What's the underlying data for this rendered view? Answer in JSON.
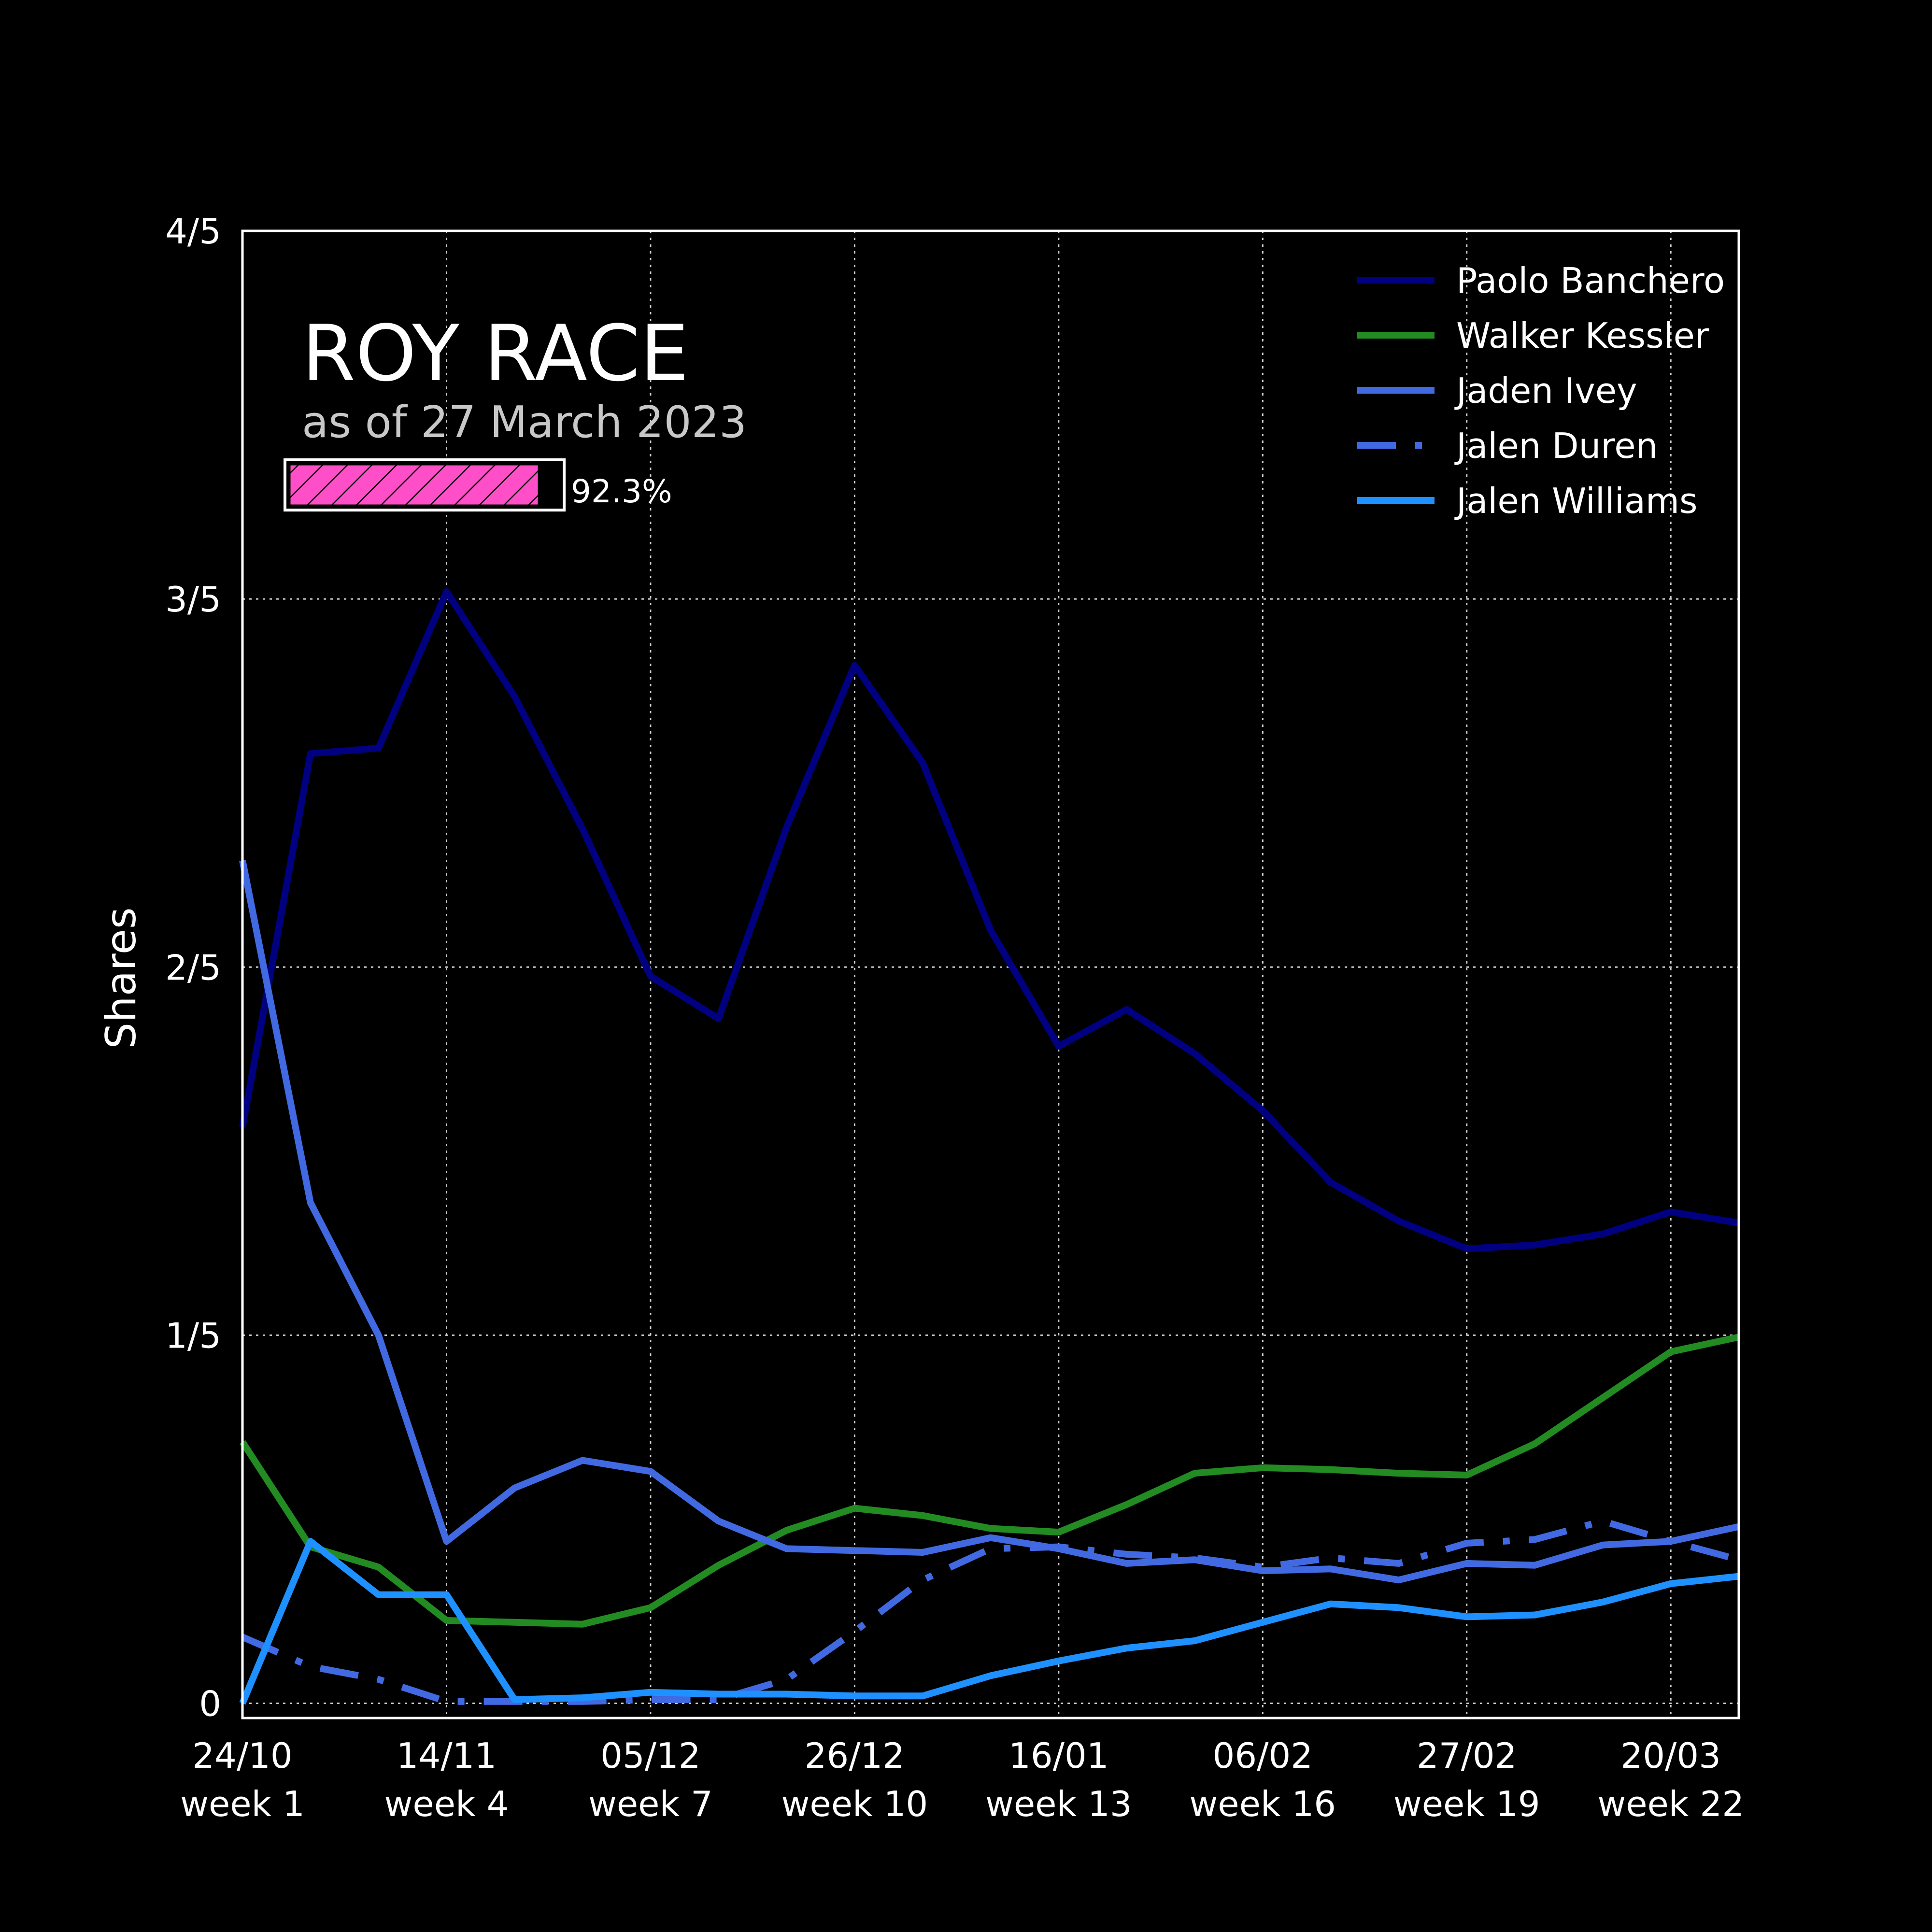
{
  "chart_data": {
    "type": "line",
    "title": "ROY RACE",
    "subtitle": "as of 27 March 2023",
    "progress": {
      "value": 0.923,
      "label": "92.3%",
      "color": "#ff4fc8"
    },
    "ylabel": "Shares",
    "xlabel": "",
    "ylim": [
      -0.008,
      0.8
    ],
    "xlim": [
      0,
      22
    ],
    "grid": true,
    "legend_position": "top-right",
    "x_ticks": [
      {
        "x": 0,
        "date": "24/10",
        "week": "week 1"
      },
      {
        "x": 3,
        "date": "14/11",
        "week": "week 4"
      },
      {
        "x": 6,
        "date": "05/12",
        "week": "week 7"
      },
      {
        "x": 9,
        "date": "26/12",
        "week": "week 10"
      },
      {
        "x": 12,
        "date": "16/01",
        "week": "week 13"
      },
      {
        "x": 15,
        "date": "06/02",
        "week": "week 16"
      },
      {
        "x": 18,
        "date": "27/02",
        "week": "week 19"
      },
      {
        "x": 21,
        "date": "20/03",
        "week": "week 22"
      }
    ],
    "y_ticks": [
      {
        "value": 0,
        "label": "0"
      },
      {
        "value": 0.2,
        "label": "1/5"
      },
      {
        "value": 0.4,
        "label": "2/5"
      },
      {
        "value": 0.6,
        "label": "3/5"
      },
      {
        "value": 0.8,
        "label": "4/5"
      }
    ],
    "x": [
      0,
      1,
      2,
      3,
      4,
      5,
      6,
      7,
      8,
      9,
      10,
      11,
      12,
      13,
      14,
      15,
      16,
      17,
      18,
      19,
      20,
      21,
      22
    ],
    "series": [
      {
        "name": "Paolo Banchero",
        "color": "#000080",
        "dash": "solid",
        "values": [
          0.313,
          0.516,
          0.519,
          0.604,
          0.547,
          0.475,
          0.395,
          0.372,
          0.476,
          0.564,
          0.511,
          0.42,
          0.357,
          0.377,
          0.353,
          0.322,
          0.283,
          0.262,
          0.247,
          0.249,
          0.255,
          0.267,
          0.261
        ]
      },
      {
        "name": "Walker Kessler",
        "color": "#228b22",
        "dash": "solid",
        "values": [
          0.142,
          0.085,
          0.074,
          0.045,
          0.044,
          0.043,
          0.052,
          0.075,
          0.094,
          0.106,
          0.102,
          0.095,
          0.093,
          0.108,
          0.125,
          0.128,
          0.127,
          0.125,
          0.124,
          0.141,
          0.166,
          0.191,
          0.199
        ]
      },
      {
        "name": "Jaden Ivey",
        "color": "#4169e1",
        "dash": "solid",
        "values": [
          0.458,
          0.272,
          0.2,
          0.088,
          0.117,
          0.132,
          0.126,
          0.099,
          0.084,
          0.083,
          0.082,
          0.09,
          0.084,
          0.076,
          0.078,
          0.072,
          0.073,
          0.067,
          0.076,
          0.075,
          0.086,
          0.088,
          0.096
        ]
      },
      {
        "name": "Jalen Duren",
        "color": "#4169e1",
        "dash": "dashdot",
        "values": [
          0.036,
          0.02,
          0.013,
          0.001,
          0.001,
          0.001,
          0.002,
          0.002,
          0.013,
          0.039,
          0.067,
          0.084,
          0.085,
          0.081,
          0.079,
          0.074,
          0.079,
          0.076,
          0.087,
          0.089,
          0.099,
          0.088,
          0.078
        ]
      },
      {
        "name": "Jalen Williams",
        "color": "#1e90ff",
        "dash": "solid",
        "values": [
          0.0,
          0.088,
          0.059,
          0.059,
          0.002,
          0.003,
          0.006,
          0.005,
          0.005,
          0.004,
          0.004,
          0.015,
          0.023,
          0.03,
          0.034,
          0.044,
          0.054,
          0.052,
          0.047,
          0.048,
          0.055,
          0.065,
          0.069
        ]
      }
    ]
  }
}
